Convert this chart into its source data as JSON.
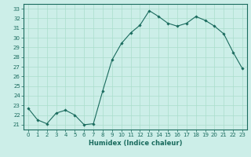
{
  "x": [
    0,
    1,
    2,
    3,
    4,
    5,
    6,
    7,
    8,
    9,
    10,
    11,
    12,
    13,
    14,
    15,
    16,
    17,
    18,
    19,
    20,
    21,
    22,
    23
  ],
  "y": [
    22.7,
    21.5,
    21.1,
    22.2,
    22.5,
    22.0,
    21.0,
    21.1,
    24.5,
    27.7,
    29.4,
    30.5,
    31.3,
    32.8,
    32.2,
    31.5,
    31.2,
    31.5,
    32.2,
    31.8,
    31.2,
    30.4,
    28.5,
    26.8
  ],
  "line_color": "#1a6b5e",
  "marker_color": "#1a6b5e",
  "bg_color": "#cceee8",
  "grid_color": "#aaddcc",
  "xlabel": "Humidex (Indice chaleur)",
  "xlim": [
    -0.5,
    23.5
  ],
  "ylim": [
    20.5,
    33.5
  ],
  "yticks": [
    21,
    22,
    23,
    24,
    25,
    26,
    27,
    28,
    29,
    30,
    31,
    32,
    33
  ],
  "xticks": [
    0,
    1,
    2,
    3,
    4,
    5,
    6,
    7,
    8,
    9,
    10,
    11,
    12,
    13,
    14,
    15,
    16,
    17,
    18,
    19,
    20,
    21,
    22,
    23
  ]
}
